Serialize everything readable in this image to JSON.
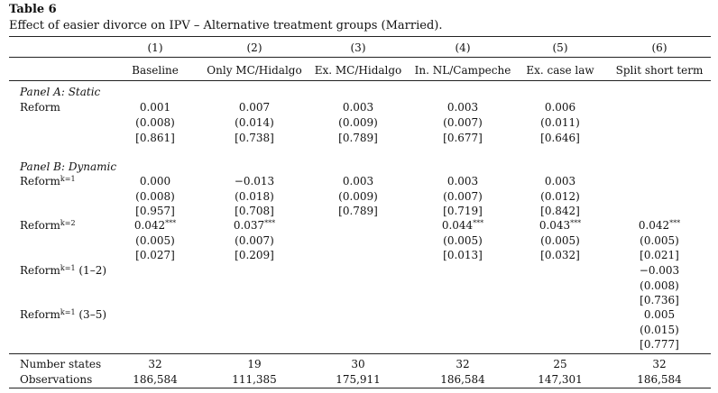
{
  "table": {
    "label": "Table 6",
    "caption": "Effect of easier divorce on IPV – Alternative treatment groups (Married).",
    "col_numbers": [
      "(1)",
      "(2)",
      "(3)",
      "(4)",
      "(5)",
      "(6)"
    ],
    "col_names": [
      "Baseline",
      "Only MC/Hidalgo",
      "Ex. MC/Hidalgo",
      "In. NL/Campeche",
      "Ex. case law",
      "Split short term"
    ],
    "panel_a": {
      "title": "Panel A: Static",
      "row_label": "Reform",
      "coef": [
        "0.001",
        "0.007",
        "0.003",
        "0.003",
        "0.006",
        ""
      ],
      "se": [
        "(0.008)",
        "(0.014)",
        "(0.009)",
        "(0.007)",
        "(0.011)",
        ""
      ],
      "p": [
        "[0.861]",
        "[0.738]",
        "[0.789]",
        "[0.677]",
        "[0.646]",
        ""
      ]
    },
    "panel_b": {
      "title": "Panel B: Dynamic",
      "rows": [
        {
          "label_base": "Reform",
          "label_sup": "k=1",
          "label_suffix": "",
          "coef": [
            "0.000",
            "−0.013",
            "0.003",
            "0.003",
            "0.003",
            ""
          ],
          "stars": [
            "",
            "",
            "",
            "",
            "",
            ""
          ],
          "se": [
            "(0.008)",
            "(0.018)",
            "(0.009)",
            "(0.007)",
            "(0.012)",
            ""
          ],
          "p": [
            "[0.957]",
            "[0.708]",
            "[0.789]",
            "[0.719]",
            "[0.842]",
            ""
          ]
        },
        {
          "label_base": "Reform",
          "label_sup": "k=2",
          "label_suffix": "",
          "coef": [
            "0.042",
            "0.037",
            "",
            "0.044",
            "0.043",
            "0.042"
          ],
          "stars": [
            "***",
            "***",
            "",
            "***",
            "***",
            "***"
          ],
          "se": [
            "(0.005)",
            "(0.007)",
            "",
            "(0.005)",
            "(0.005)",
            "(0.005)"
          ],
          "p": [
            "[0.027]",
            "[0.209]",
            "",
            "[0.013]",
            "[0.032]",
            "[0.021]"
          ]
        },
        {
          "label_base": "Reform",
          "label_sup": "k=1",
          "label_suffix": " (1–2)",
          "coef": [
            "",
            "",
            "",
            "",
            "",
            "−0.003"
          ],
          "stars": [
            "",
            "",
            "",
            "",
            "",
            ""
          ],
          "se": [
            "",
            "",
            "",
            "",
            "",
            "(0.008)"
          ],
          "p": [
            "",
            "",
            "",
            "",
            "",
            "[0.736]"
          ]
        },
        {
          "label_base": "Reform",
          "label_sup": "k=1",
          "label_suffix": " (3–5)",
          "coef": [
            "",
            "",
            "",
            "",
            "",
            "0.005"
          ],
          "stars": [
            "",
            "",
            "",
            "",
            "",
            ""
          ],
          "se": [
            "",
            "",
            "",
            "",
            "",
            "(0.015)"
          ],
          "p": [
            "",
            "",
            "",
            "",
            "",
            "[0.777]"
          ]
        }
      ]
    },
    "footer": [
      {
        "label": "Number states",
        "values": [
          "32",
          "19",
          "30",
          "32",
          "25",
          "32"
        ]
      },
      {
        "label": "Observations",
        "values": [
          "186,584",
          "111,385",
          "175,911",
          "186,584",
          "147,301",
          "186,584"
        ]
      }
    ]
  }
}
